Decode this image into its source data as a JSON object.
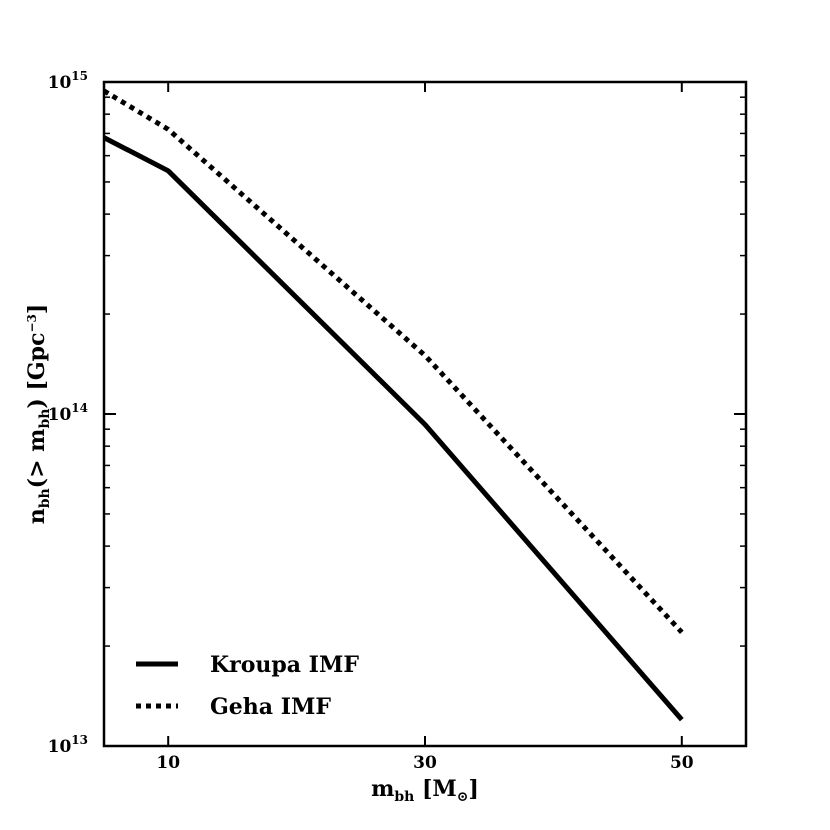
{
  "chart_data": {
    "type": "line",
    "title": "",
    "xlabel": "m_bh [M_sun]",
    "ylabel": "n_bh(> m_bh) [Gpc^-3]",
    "xscale": "linear",
    "yscale": "log",
    "xlim": [
      5,
      55
    ],
    "ylim": [
      10000000000000.0,
      1000000000000000.0
    ],
    "x_ticks": [
      {
        "value": 10,
        "label": "10"
      },
      {
        "value": 30,
        "label": "30"
      },
      {
        "value": 50,
        "label": "50"
      }
    ],
    "y_ticks": [
      {
        "value": 10000000000000.0,
        "base": "10",
        "exp": "13"
      },
      {
        "value": 100000000000000.0,
        "base": "10",
        "exp": "14"
      },
      {
        "value": 1000000000000000.0,
        "base": "10",
        "exp": "15"
      }
    ],
    "series": [
      {
        "name": "Kroupa IMF",
        "style": "solid",
        "x": [
          5,
          10,
          30,
          50
        ],
        "y": [
          680000000000000.0,
          540000000000000.0,
          93000000000000.0,
          12000000000000.0
        ]
      },
      {
        "name": "Geha IMF",
        "style": "dotted",
        "x": [
          5,
          10,
          30,
          50
        ],
        "y": [
          940000000000000.0,
          720000000000000.0,
          150000000000000.0,
          22000000000000.0
        ]
      }
    ],
    "legend_location": "lower-left",
    "xlabel_parts": {
      "main": "m",
      "sub": "bh",
      "rest": " [M",
      "sub2": "⊙",
      "end": "]"
    },
    "ylabel_parts": {
      "a": "n",
      "a_sub": "bh",
      "b": "(> m",
      "b_sub": "bh",
      "c": ") [Gpc",
      "c_sup": "−3",
      "d": "]"
    }
  }
}
